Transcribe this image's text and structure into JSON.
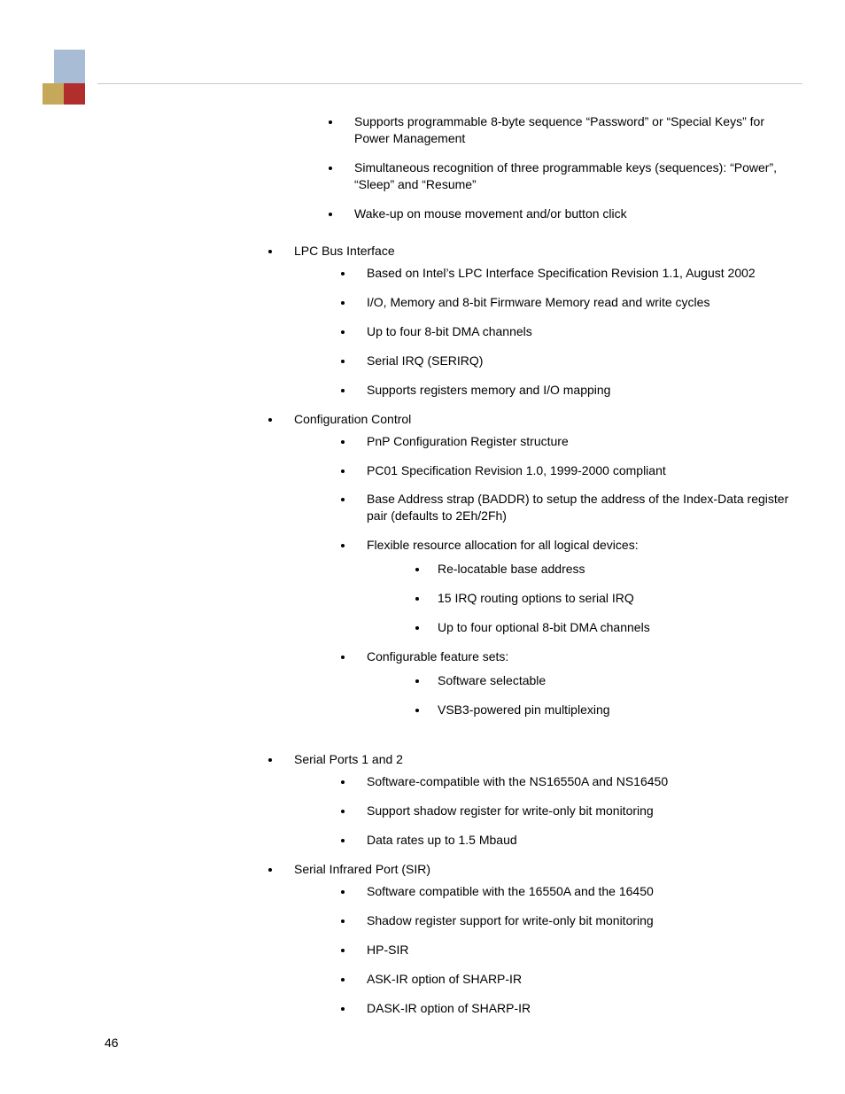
{
  "page_number": "46",
  "colors": {
    "logo_blue": "#a9bcd6",
    "logo_tan": "#c6a85a",
    "logo_red": "#b02e2c",
    "rule": "#c8c8c8",
    "text": "#000000",
    "bg": "#ffffff"
  },
  "typography": {
    "body_font": "Arial",
    "body_size_pt": 10.5,
    "line_height": 1.35
  },
  "orphan_sublist": [
    "Supports programmable 8-byte sequence “Password” or “Special Keys” for Power Management",
    "Simultaneous recognition of three programmable keys (sequences): “Power”, “Sleep” and “Resume”",
    "Wake-up on mouse movement and/or button click"
  ],
  "sections": [
    {
      "title": "LPC Bus Interface",
      "items": [
        {
          "text": "Based on Intel’s LPC Interface Specification Revision 1.1, August 2002"
        },
        {
          "text": "I/O, Memory and 8-bit Firmware Memory read and write cycles"
        },
        {
          "text": "Up to four 8-bit DMA channels"
        },
        {
          "text": "Serial IRQ (SERIRQ)"
        },
        {
          "text": "Supports registers memory and I/O mapping"
        }
      ],
      "gap_after": false
    },
    {
      "title": "Configuration Control",
      "items": [
        {
          "text": "PnP Configuration Register structure"
        },
        {
          "text": "PC01 Specification Revision 1.0, 1999-2000 compliant"
        },
        {
          "text": "Base Address strap (BADDR) to setup the address of the Index-Data register pair (defaults to 2Eh/2Fh)"
        },
        {
          "text": "Flexible resource allocation for all logical devices:",
          "subitems": [
            "Re-locatable base address",
            "15 IRQ routing options to serial IRQ",
            "Up to four optional 8-bit DMA channels"
          ]
        },
        {
          "text": "Configurable feature sets:",
          "subitems": [
            "Software selectable",
            "VSB3-powered pin multiplexing"
          ]
        }
      ],
      "gap_after": true
    },
    {
      "title": "Serial Ports 1 and 2",
      "items": [
        {
          "text": "Software-compatible with the NS16550A and NS16450"
        },
        {
          "text": "Support shadow register for write-only bit monitoring"
        },
        {
          "text": "Data rates up to 1.5 Mbaud"
        }
      ],
      "gap_after": false
    },
    {
      "title": "Serial Infrared Port (SIR)",
      "items": [
        {
          "text": "Software compatible with the 16550A and the 16450"
        },
        {
          "text": "Shadow register support for write-only bit monitoring"
        },
        {
          "text": "HP-SIR"
        },
        {
          "text": "ASK-IR option of SHARP-IR"
        },
        {
          "text": "DASK-IR option of SHARP-IR"
        }
      ],
      "gap_after": false
    }
  ]
}
